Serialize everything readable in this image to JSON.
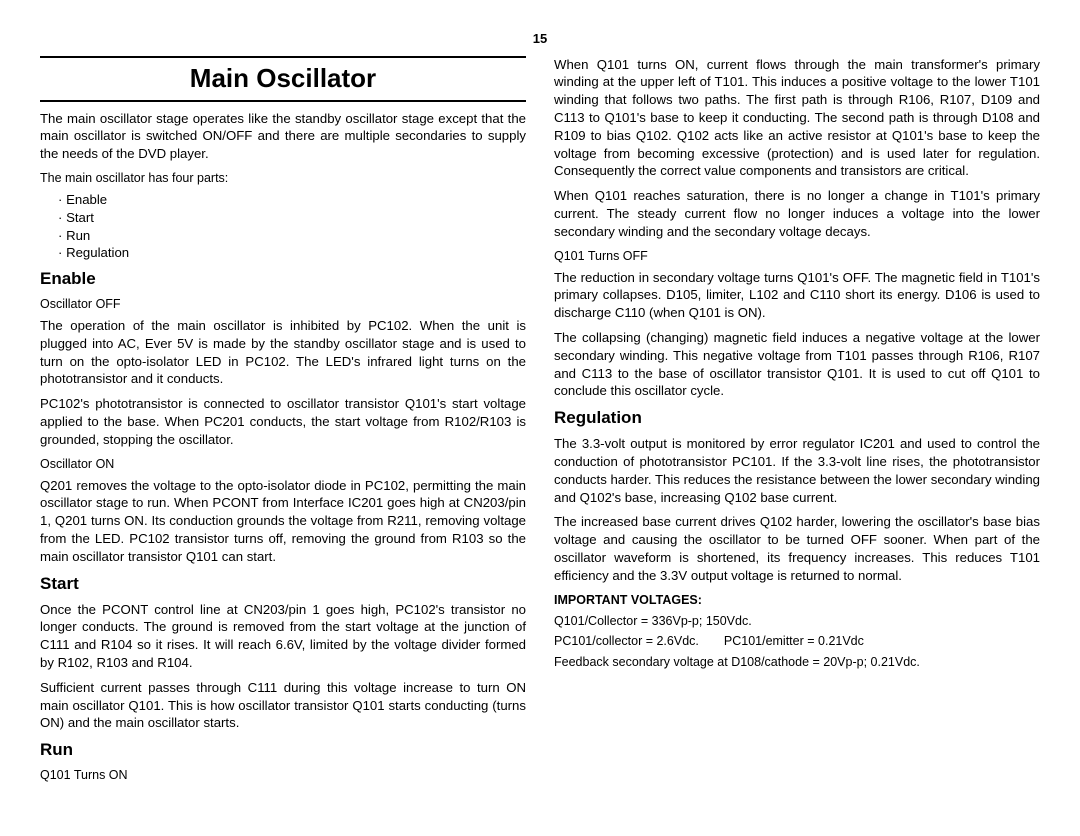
{
  "page_number": "15",
  "title": "Main Oscillator",
  "intro_p1": "The main oscillator stage operates like the standby oscillator stage except that the main oscillator is switched ON/OFF and there are multiple secondaries to supply the needs of the DVD player.",
  "intro_p2": "The main oscillator has four parts:",
  "bullets": {
    "b1": "Enable",
    "b2": "Start",
    "b3": "Run",
    "b4": "Regulation"
  },
  "enable": {
    "heading": "Enable",
    "off_label": "Oscillator OFF",
    "off_p1": "The operation of the main oscillator is inhibited by PC102.  When the unit is plugged into AC, Ever 5V is made by the standby oscillator stage and is used to turn on the opto-isolator LED in PC102.  The LED's infrared light turns on the phototransistor and it conducts.",
    "off_p2": "PC102's phototransistor is connected to oscillator transistor Q101's start voltage applied to the base.  When PC201 conducts, the start voltage from R102/R103 is grounded, stopping the oscillator.",
    "on_label": "Oscillator ON",
    "on_p1": "Q201 removes the voltage to the opto-isolator diode in PC102, permitting the main oscillator stage to run.  When PCONT from Interface IC201 goes high at CN203/pin 1, Q201 turns ON.  Its conduction grounds the voltage from R211, removing voltage from the LED.  PC102 transistor turns off, removing the ground from R103 so the main oscillator transistor Q101 can start."
  },
  "start": {
    "heading": "Start",
    "p1": "Once the PCONT control line at CN203/pin 1 goes high, PC102's transistor no longer conducts.  The ground is removed from the start voltage at the junction of C111 and R104 so it rises.  It will reach 6.6V, limited by the voltage divider formed by R102, R103 and R104.",
    "p2": "Sufficient current passes through C111 during this voltage increase to turn ON main oscillator Q101.  This is how oscillator transistor Q101 starts conducting (turns ON) and the main oscillator starts."
  },
  "run": {
    "heading": "Run",
    "on_label": "Q101 Turns ON",
    "on_p1": "When Q101 turns ON, current flows through the main transformer's primary winding at the upper left of T101.  This induces a positive voltage to the lower T101 winding that follows two paths.  The first path is through R106, R107, D109 and C113 to Q101's base to keep it conducting.  The second path is through D108 and R109 to bias Q102.  Q102 acts like an active resistor at Q101's base to keep the voltage from becoming excessive (protection) and is used later for regulation.  Consequently the correct value components and transistors are critical.",
    "on_p2": "When Q101 reaches saturation, there is no longer a change in T101's primary current.  The steady current flow no longer induces a voltage into the lower secondary winding and the secondary voltage decays.",
    "off_label": "Q101 Turns OFF",
    "off_p1": "The reduction in secondary voltage turns Q101's OFF.  The magnetic field in T101's primary collapses.  D105, limiter, L102 and C110 short its energy.  D106 is used to discharge C110 (when Q101 is ON).",
    "off_p2": "The collapsing (changing) magnetic field induces a negative voltage at the lower secondary winding.  This negative voltage from T101 passes through R106, R107 and C113 to the base of oscillator transistor Q101.  It is used to cut off Q101 to conclude this oscillator cycle."
  },
  "regulation": {
    "heading": "Regulation",
    "p1": "The 3.3-volt output is monitored by error regulator IC201 and used to control the conduction of phototransistor PC101.  If the 3.3-volt line rises, the phototransistor conducts harder.  This reduces the resistance between the lower secondary winding and Q102's base, increasing Q102 base current.",
    "p2": "The increased base current drives Q102 harder, lowering the oscillator's base bias voltage and causing the oscillator to be turned OFF sooner.  When part of the oscillator waveform is shortened, its frequency increases.  This reduces T101 efficiency and the 3.3V output voltage is returned to normal.",
    "volt_heading": "IMPORTANT VOLTAGES:",
    "volt_l1": "Q101/Collector = 336Vp-p; 150Vdc.",
    "volt_l2": "PC101/collector = 2.6Vdc.  PC101/emitter = 0.21Vdc",
    "volt_l3": "Feedback secondary voltage at D108/cathode = 20Vp-p; 0.21Vdc."
  }
}
